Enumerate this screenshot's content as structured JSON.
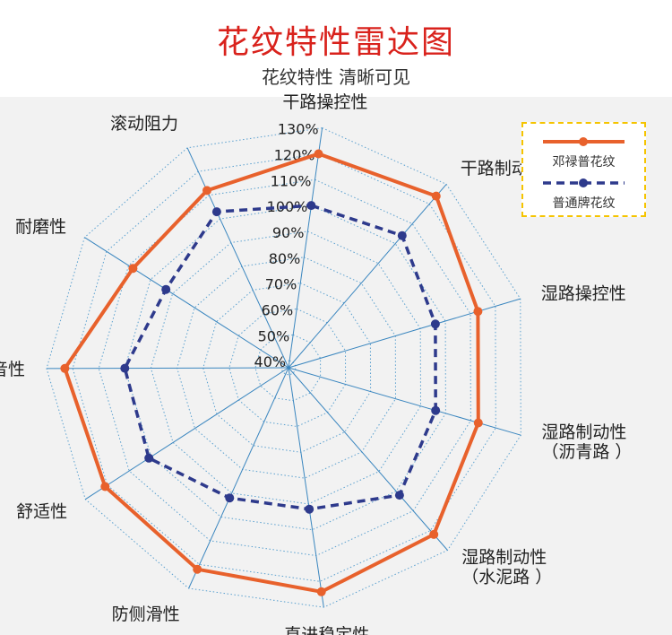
{
  "header": {
    "title": "花纹特性雷达图",
    "subtitle": "花纹特性 清晰可见"
  },
  "colors": {
    "series_a": "#e8612c",
    "series_b": "#2e3a8c",
    "grid": "#5aa0cf",
    "axis": "#3a86bf",
    "legend_border": "#f5c400",
    "panel_bg": "#f2f2f2",
    "title": "#d9221c"
  },
  "chart_data": {
    "type": "radar",
    "title": "花纹特性雷达图",
    "axes": [
      [
        "干路操控性"
      ],
      [
        "干路制动性"
      ],
      [
        "湿路操控性"
      ],
      [
        "湿路制动性",
        "（沥青路 ）"
      ],
      [
        "湿路制动性",
        "（水泥路 ）"
      ],
      [
        "直进稳定性"
      ],
      [
        "防侧滑性"
      ],
      [
        "舒适性"
      ],
      [
        "静音性"
      ],
      [
        "耐磨性"
      ],
      [
        "滚动阻力"
      ]
    ],
    "range": [
      40,
      130
    ],
    "ticks": [
      40,
      50,
      60,
      70,
      80,
      90,
      100,
      110,
      120,
      130
    ],
    "tick_labels": [
      "40%",
      "50%",
      "60%",
      "70%",
      "80%",
      "90%",
      "100%",
      "110%",
      "120%",
      "130%"
    ],
    "series": [
      {
        "name": "邓禄普花纹",
        "style": "solid",
        "values": [
          120,
          124,
          113,
          113,
          122,
          124,
          122,
          121,
          123,
          108,
          112
        ]
      },
      {
        "name": "普通牌花纹",
        "style": "dashed",
        "values": [
          100,
          104,
          96,
          96,
          102,
          92,
          92,
          101,
          100,
          93,
          103
        ]
      }
    ],
    "legend": "top-right"
  }
}
